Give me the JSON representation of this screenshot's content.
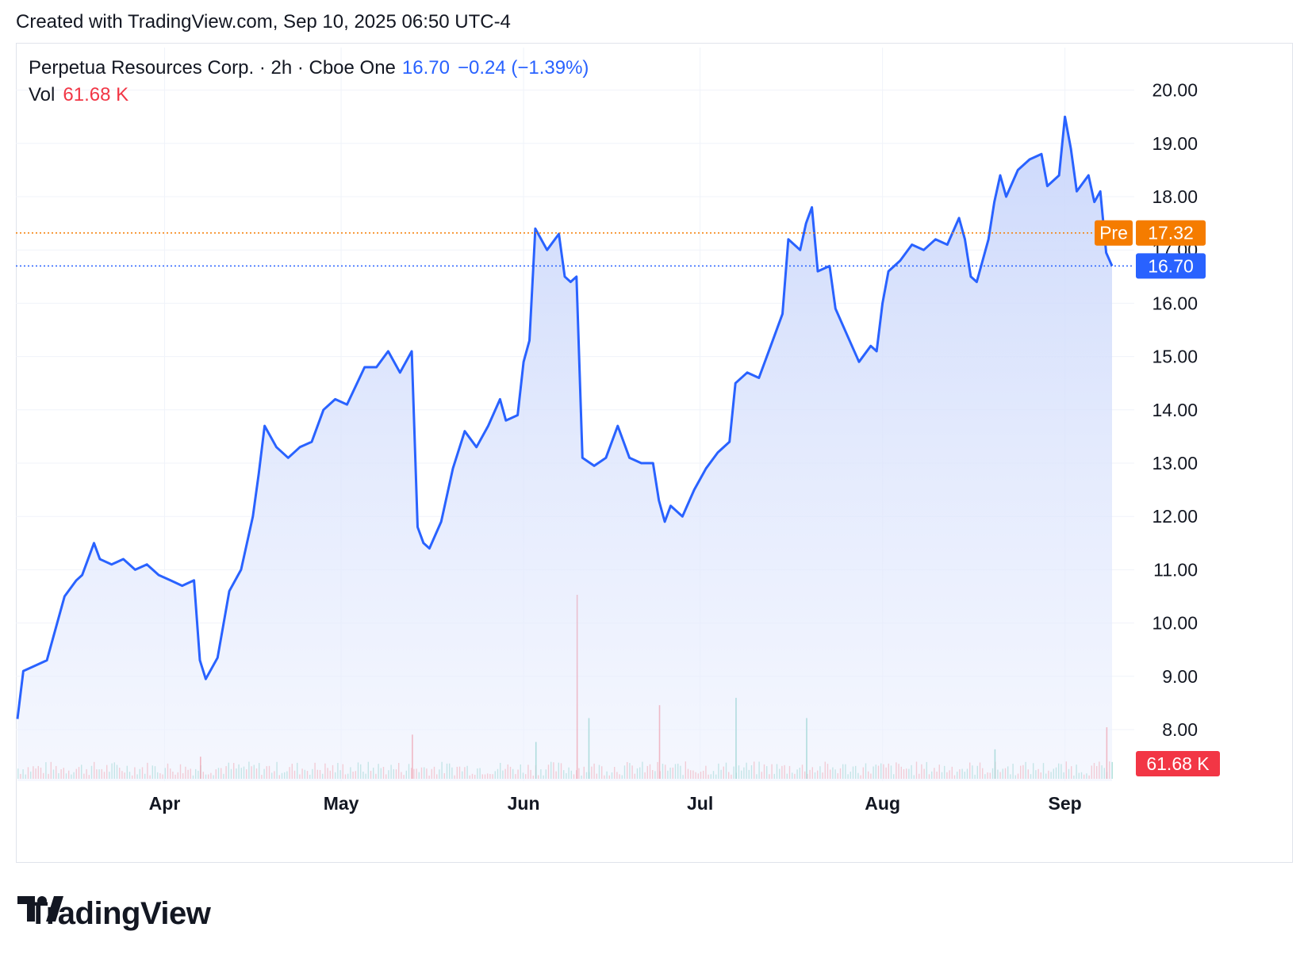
{
  "header": {
    "created_text": "Created with TradingView.com, Sep 10, 2025 06:50 UTC-4"
  },
  "legend": {
    "symbol_text": "Perpetua Resources Corp. · 2h · Cboe One",
    "last_price": "16.70",
    "change_text": "−0.24 (−1.39%)",
    "volume_label": "Vol",
    "volume_value": "61.68 K"
  },
  "brand": {
    "name": "TradingView",
    "logo_icon": "tradingview-logo-icon"
  },
  "colors": {
    "line": "#2962ff",
    "area_top": "#c9d6fb",
    "pre_market": "#f57c00",
    "vol_up": "#22ab94",
    "vol_down": "#f23645",
    "grid": "#f0f3fa"
  },
  "chart_data": {
    "type": "area",
    "title": "Perpetua Resources Corp. · 2h · Cboe One",
    "xlabel": "",
    "ylabel": "",
    "ylim": [
      7.0,
      20.9
    ],
    "y_ticks": [
      "20.00",
      "19.00",
      "18.00",
      "17.00",
      "16.00",
      "15.00",
      "14.00",
      "13.00",
      "12.00",
      "11.00",
      "10.00",
      "9.00",
      "8.00"
    ],
    "x_ticks": [
      {
        "label": "Apr",
        "date": "2025-04-01"
      },
      {
        "label": "May",
        "date": "2025-05-01"
      },
      {
        "label": "Jun",
        "date": "2025-06-01"
      },
      {
        "label": "Jul",
        "date": "2025-07-01"
      },
      {
        "label": "Aug",
        "date": "2025-08-01"
      },
      {
        "label": "Sep",
        "date": "2025-09-01"
      }
    ],
    "series": [
      {
        "name": "Perpetua Resources Corp.",
        "points": [
          [
            "2025-03-07",
            8.2
          ],
          [
            "2025-03-08",
            9.1
          ],
          [
            "2025-03-10",
            9.2
          ],
          [
            "2025-03-12",
            9.3
          ],
          [
            "2025-03-13",
            9.7
          ],
          [
            "2025-03-15",
            10.5
          ],
          [
            "2025-03-17",
            10.8
          ],
          [
            "2025-03-18",
            10.9
          ],
          [
            "2025-03-20",
            11.5
          ],
          [
            "2025-03-21",
            11.2
          ],
          [
            "2025-03-23",
            11.1
          ],
          [
            "2025-03-25",
            11.2
          ],
          [
            "2025-03-27",
            11.0
          ],
          [
            "2025-03-29",
            11.1
          ],
          [
            "2025-03-31",
            10.9
          ],
          [
            "2025-04-02",
            10.8
          ],
          [
            "2025-04-04",
            10.7
          ],
          [
            "2025-04-06",
            10.8
          ],
          [
            "2025-04-07",
            9.3
          ],
          [
            "2025-04-08",
            8.95
          ],
          [
            "2025-04-10",
            9.35
          ],
          [
            "2025-04-12",
            10.6
          ],
          [
            "2025-04-14",
            11.0
          ],
          [
            "2025-04-16",
            12.0
          ],
          [
            "2025-04-17",
            12.8
          ],
          [
            "2025-04-18",
            13.7
          ],
          [
            "2025-04-20",
            13.3
          ],
          [
            "2025-04-22",
            13.1
          ],
          [
            "2025-04-24",
            13.3
          ],
          [
            "2025-04-26",
            13.4
          ],
          [
            "2025-04-28",
            14.0
          ],
          [
            "2025-04-30",
            14.2
          ],
          [
            "2025-05-02",
            14.1
          ],
          [
            "2025-05-05",
            14.8
          ],
          [
            "2025-05-07",
            14.8
          ],
          [
            "2025-05-09",
            15.1
          ],
          [
            "2025-05-11",
            14.7
          ],
          [
            "2025-05-13",
            15.1
          ],
          [
            "2025-05-14",
            11.8
          ],
          [
            "2025-05-15",
            11.5
          ],
          [
            "2025-05-16",
            11.4
          ],
          [
            "2025-05-18",
            11.9
          ],
          [
            "2025-05-20",
            12.9
          ],
          [
            "2025-05-22",
            13.6
          ],
          [
            "2025-05-24",
            13.3
          ],
          [
            "2025-05-26",
            13.7
          ],
          [
            "2025-05-28",
            14.2
          ],
          [
            "2025-05-29",
            13.8
          ],
          [
            "2025-05-31",
            13.9
          ],
          [
            "2025-06-01",
            14.9
          ],
          [
            "2025-06-02",
            15.3
          ],
          [
            "2025-06-03",
            17.4
          ],
          [
            "2025-06-05",
            17.0
          ],
          [
            "2025-06-07",
            17.3
          ],
          [
            "2025-06-08",
            16.5
          ],
          [
            "2025-06-09",
            16.4
          ],
          [
            "2025-06-10",
            16.5
          ],
          [
            "2025-06-11",
            13.1
          ],
          [
            "2025-06-13",
            12.95
          ],
          [
            "2025-06-15",
            13.1
          ],
          [
            "2025-06-17",
            13.7
          ],
          [
            "2025-06-19",
            13.1
          ],
          [
            "2025-06-21",
            13.0
          ],
          [
            "2025-06-23",
            13.0
          ],
          [
            "2025-06-24",
            12.3
          ],
          [
            "2025-06-25",
            11.9
          ],
          [
            "2025-06-26",
            12.2
          ],
          [
            "2025-06-28",
            12.0
          ],
          [
            "2025-06-30",
            12.5
          ],
          [
            "2025-07-02",
            12.9
          ],
          [
            "2025-07-04",
            13.2
          ],
          [
            "2025-07-06",
            13.4
          ],
          [
            "2025-07-07",
            14.5
          ],
          [
            "2025-07-09",
            14.7
          ],
          [
            "2025-07-11",
            14.6
          ],
          [
            "2025-07-13",
            15.2
          ],
          [
            "2025-07-15",
            15.8
          ],
          [
            "2025-07-16",
            17.2
          ],
          [
            "2025-07-18",
            17.0
          ],
          [
            "2025-07-19",
            17.5
          ],
          [
            "2025-07-20",
            17.8
          ],
          [
            "2025-07-21",
            16.6
          ],
          [
            "2025-07-23",
            16.7
          ],
          [
            "2025-07-24",
            15.9
          ],
          [
            "2025-07-26",
            15.4
          ],
          [
            "2025-07-28",
            14.9
          ],
          [
            "2025-07-30",
            15.2
          ],
          [
            "2025-07-31",
            15.1
          ],
          [
            "2025-08-01",
            16.0
          ],
          [
            "2025-08-02",
            16.6
          ],
          [
            "2025-08-04",
            16.8
          ],
          [
            "2025-08-06",
            17.1
          ],
          [
            "2025-08-08",
            17.0
          ],
          [
            "2025-08-10",
            17.2
          ],
          [
            "2025-08-12",
            17.1
          ],
          [
            "2025-08-14",
            17.6
          ],
          [
            "2025-08-15",
            17.2
          ],
          [
            "2025-08-16",
            16.5
          ],
          [
            "2025-08-17",
            16.4
          ],
          [
            "2025-08-19",
            17.2
          ],
          [
            "2025-08-20",
            17.9
          ],
          [
            "2025-08-21",
            18.4
          ],
          [
            "2025-08-22",
            18.0
          ],
          [
            "2025-08-24",
            18.5
          ],
          [
            "2025-08-26",
            18.7
          ],
          [
            "2025-08-28",
            18.8
          ],
          [
            "2025-08-29",
            18.2
          ],
          [
            "2025-08-31",
            18.4
          ],
          [
            "2025-09-01",
            19.5
          ],
          [
            "2025-09-02",
            18.9
          ],
          [
            "2025-09-03",
            18.1
          ],
          [
            "2025-09-05",
            18.4
          ],
          [
            "2025-09-06",
            17.9
          ],
          [
            "2025-09-07",
            18.1
          ],
          [
            "2025-09-08",
            16.95
          ],
          [
            "2025-09-09",
            16.7
          ]
        ]
      }
    ],
    "last_price_label": "16.70",
    "pre_market": {
      "label": "Pre",
      "value": "17.32"
    },
    "volume_label": "61.68 K",
    "volume_bars": [
      {
        "date": "2025-06-10",
        "value": 1.0,
        "dir": "down"
      },
      {
        "date": "2025-06-12",
        "value": 0.33,
        "dir": "up"
      },
      {
        "date": "2025-06-24",
        "value": 0.4,
        "dir": "down"
      },
      {
        "date": "2025-07-07",
        "value": 0.44,
        "dir": "up"
      },
      {
        "date": "2025-07-19",
        "value": 0.33,
        "dir": "up"
      },
      {
        "date": "2025-05-13",
        "value": 0.24,
        "dir": "down"
      },
      {
        "date": "2025-06-03",
        "value": 0.2,
        "dir": "up"
      },
      {
        "date": "2025-09-08",
        "value": 0.28,
        "dir": "down"
      },
      {
        "date": "2025-04-07",
        "value": 0.12,
        "dir": "down"
      },
      {
        "date": "2025-08-20",
        "value": 0.16,
        "dir": "up"
      }
    ]
  }
}
